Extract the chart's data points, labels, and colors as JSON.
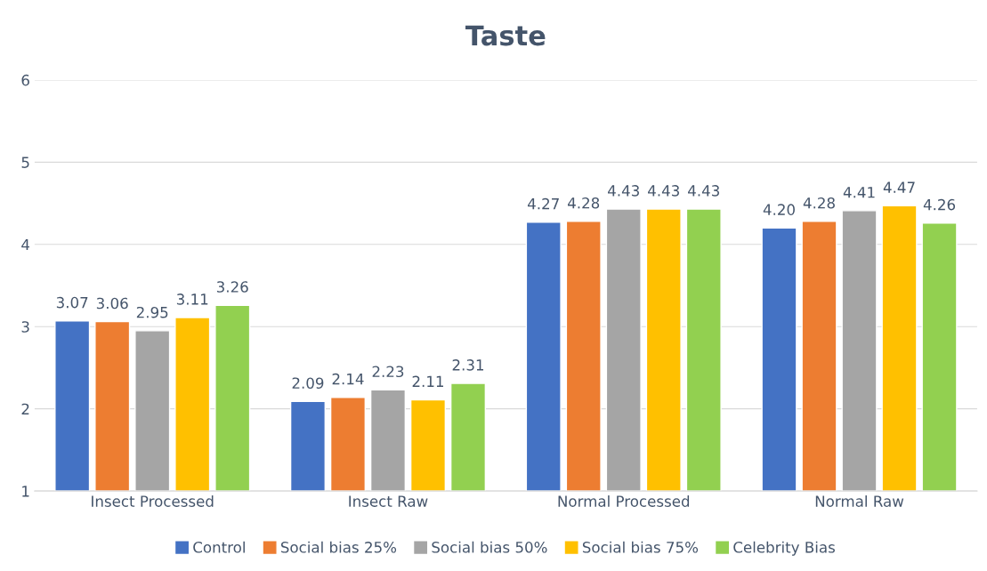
{
  "chart_data": {
    "type": "bar",
    "title": "Taste",
    "categories": [
      "Insect Processed",
      "Insect Raw",
      "Normal Processed",
      "Normal Raw"
    ],
    "series": [
      {
        "name": "Control",
        "color": "#4472c4",
        "values": [
          3.07,
          2.09,
          4.27,
          4.2
        ],
        "value_labels": [
          "3.07",
          "2.09",
          "4.27",
          "4.20"
        ]
      },
      {
        "name": "Social bias 25%",
        "color": "#ed7d31",
        "values": [
          3.06,
          2.14,
          4.28,
          4.28
        ],
        "value_labels": [
          "3.06",
          "2.14",
          "4.28",
          "4.28"
        ]
      },
      {
        "name": "Social bias 50%",
        "color": "#a5a5a5",
        "values": [
          2.95,
          2.23,
          4.43,
          4.41
        ],
        "value_labels": [
          "2.95",
          "2.23",
          "4.43",
          "4.41"
        ]
      },
      {
        "name": "Social bias 75%",
        "color": "#ffc000",
        "values": [
          3.11,
          2.11,
          4.43,
          4.47
        ],
        "value_labels": [
          "3.11",
          "2.11",
          "4.43",
          "4.47"
        ]
      },
      {
        "name": "Celebrity Bias",
        "color": "#92d050",
        "values": [
          3.26,
          2.31,
          4.43,
          4.26
        ],
        "value_labels": [
          "3.26",
          "2.31",
          "4.43",
          "4.26"
        ]
      }
    ],
    "ylim": [
      1,
      6
    ],
    "yticks": [
      1,
      2,
      3,
      4,
      5,
      6
    ],
    "grid": "y",
    "legend": "bottom"
  }
}
